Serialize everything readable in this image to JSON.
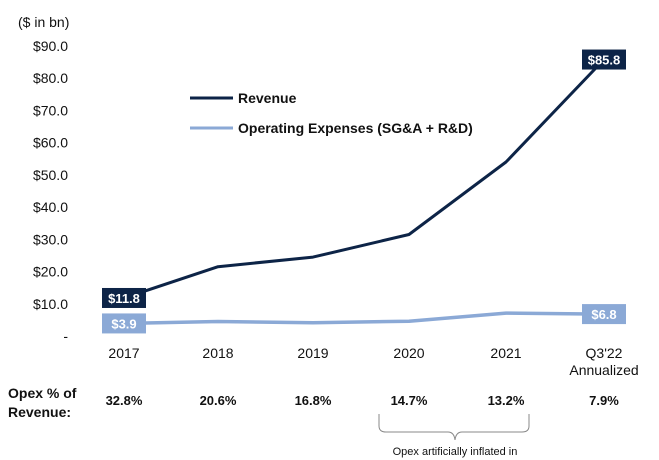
{
  "chart_data": {
    "type": "line",
    "unit_label": "($ in bn)",
    "categories": [
      "2017",
      "2018",
      "2019",
      "2020",
      "2021",
      "Q3'22 Annualized"
    ],
    "ylim": [
      0,
      90
    ],
    "yticks": [
      "-",
      "$10.0",
      "$20.0",
      "$30.0",
      "$40.0",
      "$50.0",
      "$60.0",
      "$70.0",
      "$80.0",
      "$90.0"
    ],
    "grid": false,
    "legend_position": "top-left",
    "series": [
      {
        "name": "Revenue",
        "color": "#0d2447",
        "values": [
          11.8,
          21.5,
          24.5,
          31.5,
          54.0,
          85.8
        ],
        "end_labels": [
          "$11.8",
          "$85.8"
        ]
      },
      {
        "name": "Operating Expenses (SG&A + R&D)",
        "color": "#8ba9d6",
        "values": [
          3.9,
          4.5,
          4.1,
          4.6,
          7.1,
          6.8
        ],
        "end_labels": [
          "$3.9",
          "$6.8"
        ]
      }
    ],
    "opex_row": {
      "header_line1": "Opex % of",
      "header_line2": "Revenue:",
      "values": [
        "32.8%",
        "20.6%",
        "16.8%",
        "14.7%",
        "13.2%",
        "7.9%"
      ]
    },
    "annotation": "Opex artificially inflated in"
  }
}
